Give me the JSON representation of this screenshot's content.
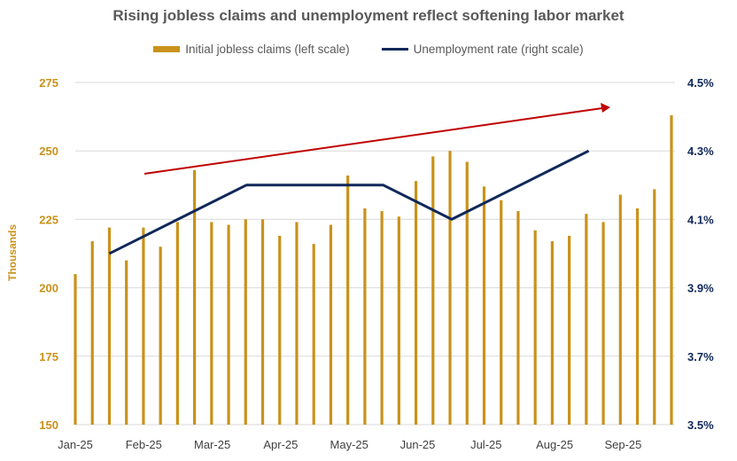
{
  "chart_data": {
    "type": "bar",
    "title": "Rising jobless claims and unemployment reflect softening labor market",
    "ylabel": "Thousands",
    "legend_position": "top",
    "grid": true,
    "colors": {
      "claims": "#C9921A",
      "unemployment": "#10285A",
      "trend_arrow": "#C00000"
    },
    "x_labels": [
      "Jan-25",
      "Feb-25",
      "Mar-25",
      "Apr-25",
      "May-25",
      "Jun-25",
      "Jul-25",
      "Aug-25",
      "Sep-25"
    ],
    "left_axis": {
      "ylim": [
        150,
        275
      ],
      "ticks": [
        "150",
        "175",
        "200",
        "225",
        "250",
        "275"
      ]
    },
    "right_axis": {
      "ylim": [
        3.5,
        4.5
      ],
      "ticks": [
        "3.5%",
        "3.7%",
        "3.9%",
        "4.1%",
        "4.3%",
        "4.5%"
      ]
    },
    "series": [
      {
        "name": "Initial jobless claims (left scale)",
        "type": "bar",
        "axis": "left",
        "values": [
          205,
          217,
          222,
          210,
          222,
          215,
          224,
          243,
          224,
          223,
          225,
          225,
          219,
          224,
          216,
          223,
          241,
          229,
          228,
          226,
          239,
          248,
          250,
          246,
          237,
          232,
          228,
          221,
          217,
          219,
          227,
          224,
          234,
          229,
          236,
          263
        ]
      },
      {
        "name": "Unemployment rate (right scale)",
        "type": "line",
        "axis": "right",
        "values": [
          4.0,
          4.1,
          4.2,
          4.2,
          4.2,
          4.1,
          4.2,
          4.3
        ]
      }
    ]
  }
}
